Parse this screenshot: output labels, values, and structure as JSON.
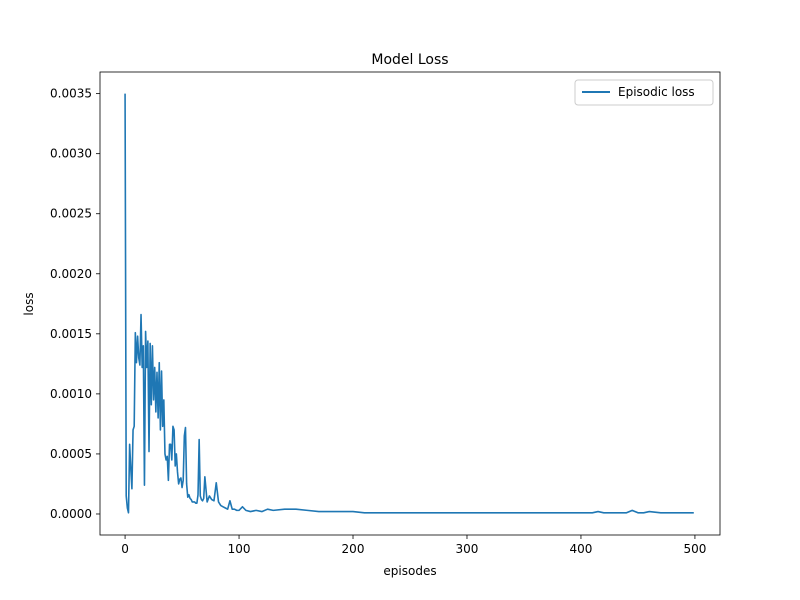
{
  "chart_data": {
    "type": "line",
    "title": "Model Loss",
    "xlabel": "episodes",
    "ylabel": "loss",
    "xlim": [
      -22,
      522
    ],
    "ylim": [
      -0.000175,
      0.00368
    ],
    "xticks": [
      0,
      100,
      200,
      300,
      400,
      500
    ],
    "xtick_labels": [
      "0",
      "100",
      "200",
      "300",
      "400",
      "500"
    ],
    "yticks": [
      0.0,
      0.0005,
      0.001,
      0.0015,
      0.002,
      0.0025,
      0.003,
      0.0035
    ],
    "ytick_labels": [
      "0.0000",
      "0.0005",
      "0.0010",
      "0.0015",
      "0.0020",
      "0.0025",
      "0.0030",
      "0.0035"
    ],
    "grid": false,
    "legend_position": "top-right",
    "series": [
      {
        "name": "Episodic loss",
        "color": "#1f77b4",
        "x": [
          0,
          1,
          2,
          3,
          4,
          5,
          6,
          7,
          8,
          9,
          10,
          11,
          12,
          13,
          14,
          15,
          16,
          17,
          18,
          19,
          20,
          21,
          22,
          23,
          24,
          25,
          26,
          27,
          28,
          29,
          30,
          31,
          32,
          33,
          34,
          35,
          36,
          37,
          38,
          39,
          40,
          41,
          42,
          43,
          44,
          45,
          46,
          47,
          48,
          49,
          50,
          51,
          52,
          53,
          54,
          55,
          56,
          57,
          58,
          59,
          60,
          61,
          62,
          63,
          64,
          65,
          66,
          67,
          68,
          69,
          70,
          72,
          74,
          76,
          78,
          80,
          82,
          84,
          86,
          88,
          90,
          92,
          94,
          96,
          98,
          100,
          103,
          106,
          110,
          115,
          120,
          125,
          130,
          140,
          150,
          160,
          170,
          180,
          190,
          200,
          210,
          220,
          230,
          240,
          250,
          260,
          270,
          280,
          290,
          300,
          310,
          320,
          330,
          340,
          350,
          360,
          370,
          380,
          390,
          400,
          410,
          415,
          420,
          430,
          440,
          445,
          450,
          455,
          460,
          470,
          480,
          490,
          499
        ],
        "y": [
          0.0035,
          0.00015,
          5e-05,
          1e-05,
          0.00058,
          0.00038,
          0.00021,
          0.0007,
          0.00073,
          0.00151,
          0.00126,
          0.00148,
          0.0013,
          0.00124,
          0.00166,
          0.00122,
          0.0014,
          0.00024,
          0.00152,
          0.00122,
          0.00144,
          0.00052,
          0.00142,
          0.00091,
          0.0014,
          0.00095,
          0.00122,
          0.00085,
          0.00118,
          0.0008,
          0.00126,
          0.0007,
          0.00119,
          0.00073,
          0.00095,
          0.0005,
          0.00045,
          0.00048,
          0.00028,
          0.00058,
          0.00058,
          0.00045,
          0.00073,
          0.0007,
          0.0004,
          0.0005,
          0.00035,
          0.00025,
          0.00029,
          0.0003,
          0.00022,
          0.00028,
          0.00065,
          0.00072,
          0.00025,
          0.00014,
          0.00016,
          0.00013,
          0.00012,
          0.0001,
          0.0001,
          0.0001,
          9e-05,
          9e-05,
          0.00016,
          0.00062,
          0.00015,
          0.00012,
          0.00011,
          0.00013,
          0.00031,
          0.0001,
          0.00015,
          0.00012,
          0.00011,
          0.00026,
          0.0001,
          7e-05,
          6e-05,
          5e-05,
          4e-05,
          0.00011,
          4e-05,
          4e-05,
          3e-05,
          3e-05,
          6e-05,
          3e-05,
          2e-05,
          3e-05,
          2e-05,
          4e-05,
          3e-05,
          4e-05,
          4e-05,
          3e-05,
          2e-05,
          2e-05,
          2e-05,
          2e-05,
          1e-05,
          1e-05,
          1e-05,
          1e-05,
          1e-05,
          1e-05,
          1e-05,
          1e-05,
          1e-05,
          1e-05,
          1e-05,
          1e-05,
          1e-05,
          1e-05,
          1e-05,
          1e-05,
          1e-05,
          1e-05,
          1e-05,
          1e-05,
          1e-05,
          2e-05,
          1e-05,
          1e-05,
          1e-05,
          3e-05,
          1e-05,
          1e-05,
          2e-05,
          1e-05,
          1e-05,
          1e-05,
          1e-05
        ]
      }
    ]
  }
}
